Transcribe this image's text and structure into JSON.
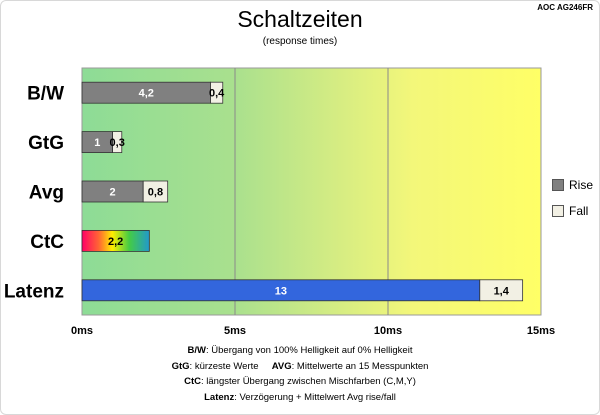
{
  "header": {
    "title": "Schaltzeiten",
    "subtitle": "(response times)",
    "model": "AOC AG246FR"
  },
  "legend": {
    "items": [
      {
        "label": "Rise",
        "color": "#808080"
      },
      {
        "label": "Fall",
        "color": "#f2f0e4"
      }
    ]
  },
  "footnotes": {
    "line1": {
      "term": "B/W",
      "text": ":  Übergang von 100% Helligkeit auf 0% Helligkeit"
    },
    "line2": {
      "term1": "GtG",
      "text1": ": kürzeste  Werte",
      "term2": "AVG",
      "text2": ": Mittelwerte  an 15 Messpunkten"
    },
    "line3": {
      "term": "CtC",
      "text": ": längster Übergang  zwischen Mischfarben  (C,M,Y)"
    },
    "line4": {
      "term": "Latenz",
      "text": ": Verzögerung  + Mittelwert  Avg rise/fall"
    }
  },
  "colors": {
    "rise": "#808080",
    "fall": "#f2f0e4",
    "latency": "#3366dd",
    "background_gradient": [
      "#8ddc96",
      "#bfe88a",
      "#f3f77a",
      "#ffff66"
    ],
    "ctc_gradient": [
      "#ff0066",
      "#ff6633",
      "#ffee00",
      "#44cc44",
      "#2299cc"
    ]
  },
  "chart_data": {
    "type": "bar",
    "orientation": "horizontal",
    "stacked": true,
    "categories": [
      "B/W",
      "GtG",
      "Avg",
      "CtC",
      "Latenz"
    ],
    "series": [
      {
        "name": "Rise",
        "values": [
          4.2,
          1,
          2,
          null,
          null
        ]
      },
      {
        "name": "Fall",
        "values": [
          0.4,
          0.3,
          0.8,
          null,
          1.4
        ]
      }
    ],
    "ctc_value": 2.2,
    "latency_value": 13,
    "value_labels": {
      "rise": [
        "4,2",
        "1",
        "2",
        "2,2",
        "13"
      ],
      "fall": [
        "0,4",
        "0,3",
        "0,8",
        "",
        "1,4"
      ]
    },
    "xlim": [
      0,
      15
    ],
    "xticks": [
      0,
      5,
      10,
      15
    ],
    "xtick_labels": [
      "0ms",
      "5ms",
      "10ms",
      "15ms"
    ],
    "xlabel": "",
    "ylabel": "",
    "grid": true,
    "legend_position": "right"
  }
}
